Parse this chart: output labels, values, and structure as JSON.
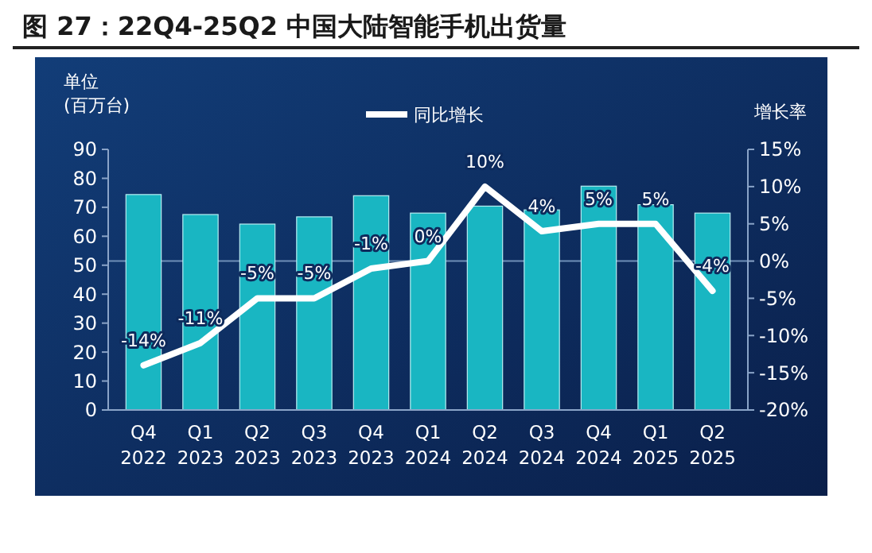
{
  "chart_data": {
    "type": "bar",
    "title": "图 27：22Q4-25Q2 中国大陆智能手机出货量",
    "categories": [
      "Q4 2022",
      "Q1 2023",
      "Q2 2023",
      "Q3 2023",
      "Q4 2023",
      "Q1 2024",
      "Q2 2024",
      "Q3 2024",
      "Q4 2024",
      "Q1 2025",
      "Q2 2025"
    ],
    "series": [
      {
        "color": "#19b6c2",
        "values": [
          74.4,
          67.5,
          64.2,
          66.7,
          74,
          68,
          70.4,
          69.1,
          77.3,
          70.9,
          68
        ]
      },
      {
        "type": "line",
        "name": "同比增长",
        "axis": "y2",
        "color": "#ffffff",
        "values": [
          -14,
          -11,
          -5,
          -5,
          -1,
          0,
          10,
          4,
          5,
          5,
          -4
        ],
        "value_labels": [
          "-14%",
          "-11%",
          "-5%",
          "-5%",
          "-1%",
          "0%",
          "10%",
          "4%",
          "5%",
          "5%",
          "-4%"
        ]
      }
    ],
    "ylabel": "单位\n(百万台)",
    "y2label": "增长率",
    "ylim": [
      0,
      90
    ],
    "yticks": [
      0,
      10,
      20,
      30,
      40,
      50,
      60,
      70,
      80,
      90
    ],
    "y2lim": [
      -20,
      15
    ],
    "y2ticks": [
      {
        "value": -20,
        "label": "-20%"
      },
      {
        "value": -15,
        "label": "-15%"
      },
      {
        "value": -10,
        "label": "-10%"
      },
      {
        "value": -5,
        "label": "-5%"
      },
      {
        "value": 0,
        "label": "0%"
      },
      {
        "value": 5,
        "label": "5%"
      },
      {
        "value": 10,
        "label": "10%"
      },
      {
        "value": 15,
        "label": "15%"
      }
    ],
    "ref_lines": [
      {
        "axis": "y2",
        "value": 0,
        "color": "#6f8fb8"
      }
    ],
    "legend": "top",
    "grid": false,
    "marker": "none",
    "line_style": "solid"
  }
}
